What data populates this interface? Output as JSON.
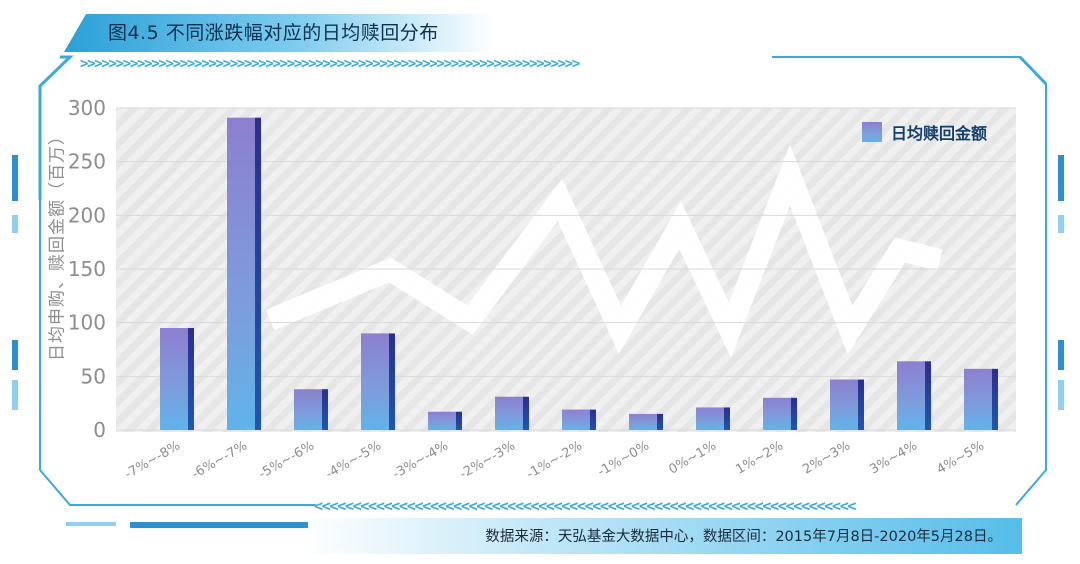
{
  "header": {
    "title": "图4.5 不同涨跌幅对应的日均赎回分布"
  },
  "footer": {
    "source": "数据来源：天弘基金大数据中心，数据区间：2015年7月8日-2020年5月28日。"
  },
  "colors": {
    "accent": "#3aa9de",
    "bar_top": "#8c7fcf",
    "bar_bottom": "#5fb4ea",
    "bar_side": "#1f3f99",
    "grid": "#d9d9d9",
    "axis_text": "#8d8d8d"
  },
  "chart_data": {
    "type": "bar",
    "title": "",
    "ylabel": "日均申购、赎回金额（百万）",
    "xlabel": "",
    "ylim": [
      0,
      300
    ],
    "yticks": [
      0,
      50,
      100,
      150,
      200,
      250,
      300
    ],
    "categories": [
      "-7%~-8%",
      "-6%~-7%",
      "-5%~-6%",
      "-4%~-5%",
      "-3%~-4%",
      "-2%~-3%",
      "-1%~-2%",
      "-1%~0%",
      "0%~1%",
      "1%~2%",
      "2%~3%",
      "3%~4%",
      "4%~5%"
    ],
    "series": [
      {
        "name": "日均赎回金额",
        "values": [
          95,
          291,
          38,
          90,
          17,
          31,
          19,
          15,
          21,
          30,
          47,
          64,
          57
        ]
      }
    ],
    "grid": true,
    "legend_position": "top-right"
  }
}
